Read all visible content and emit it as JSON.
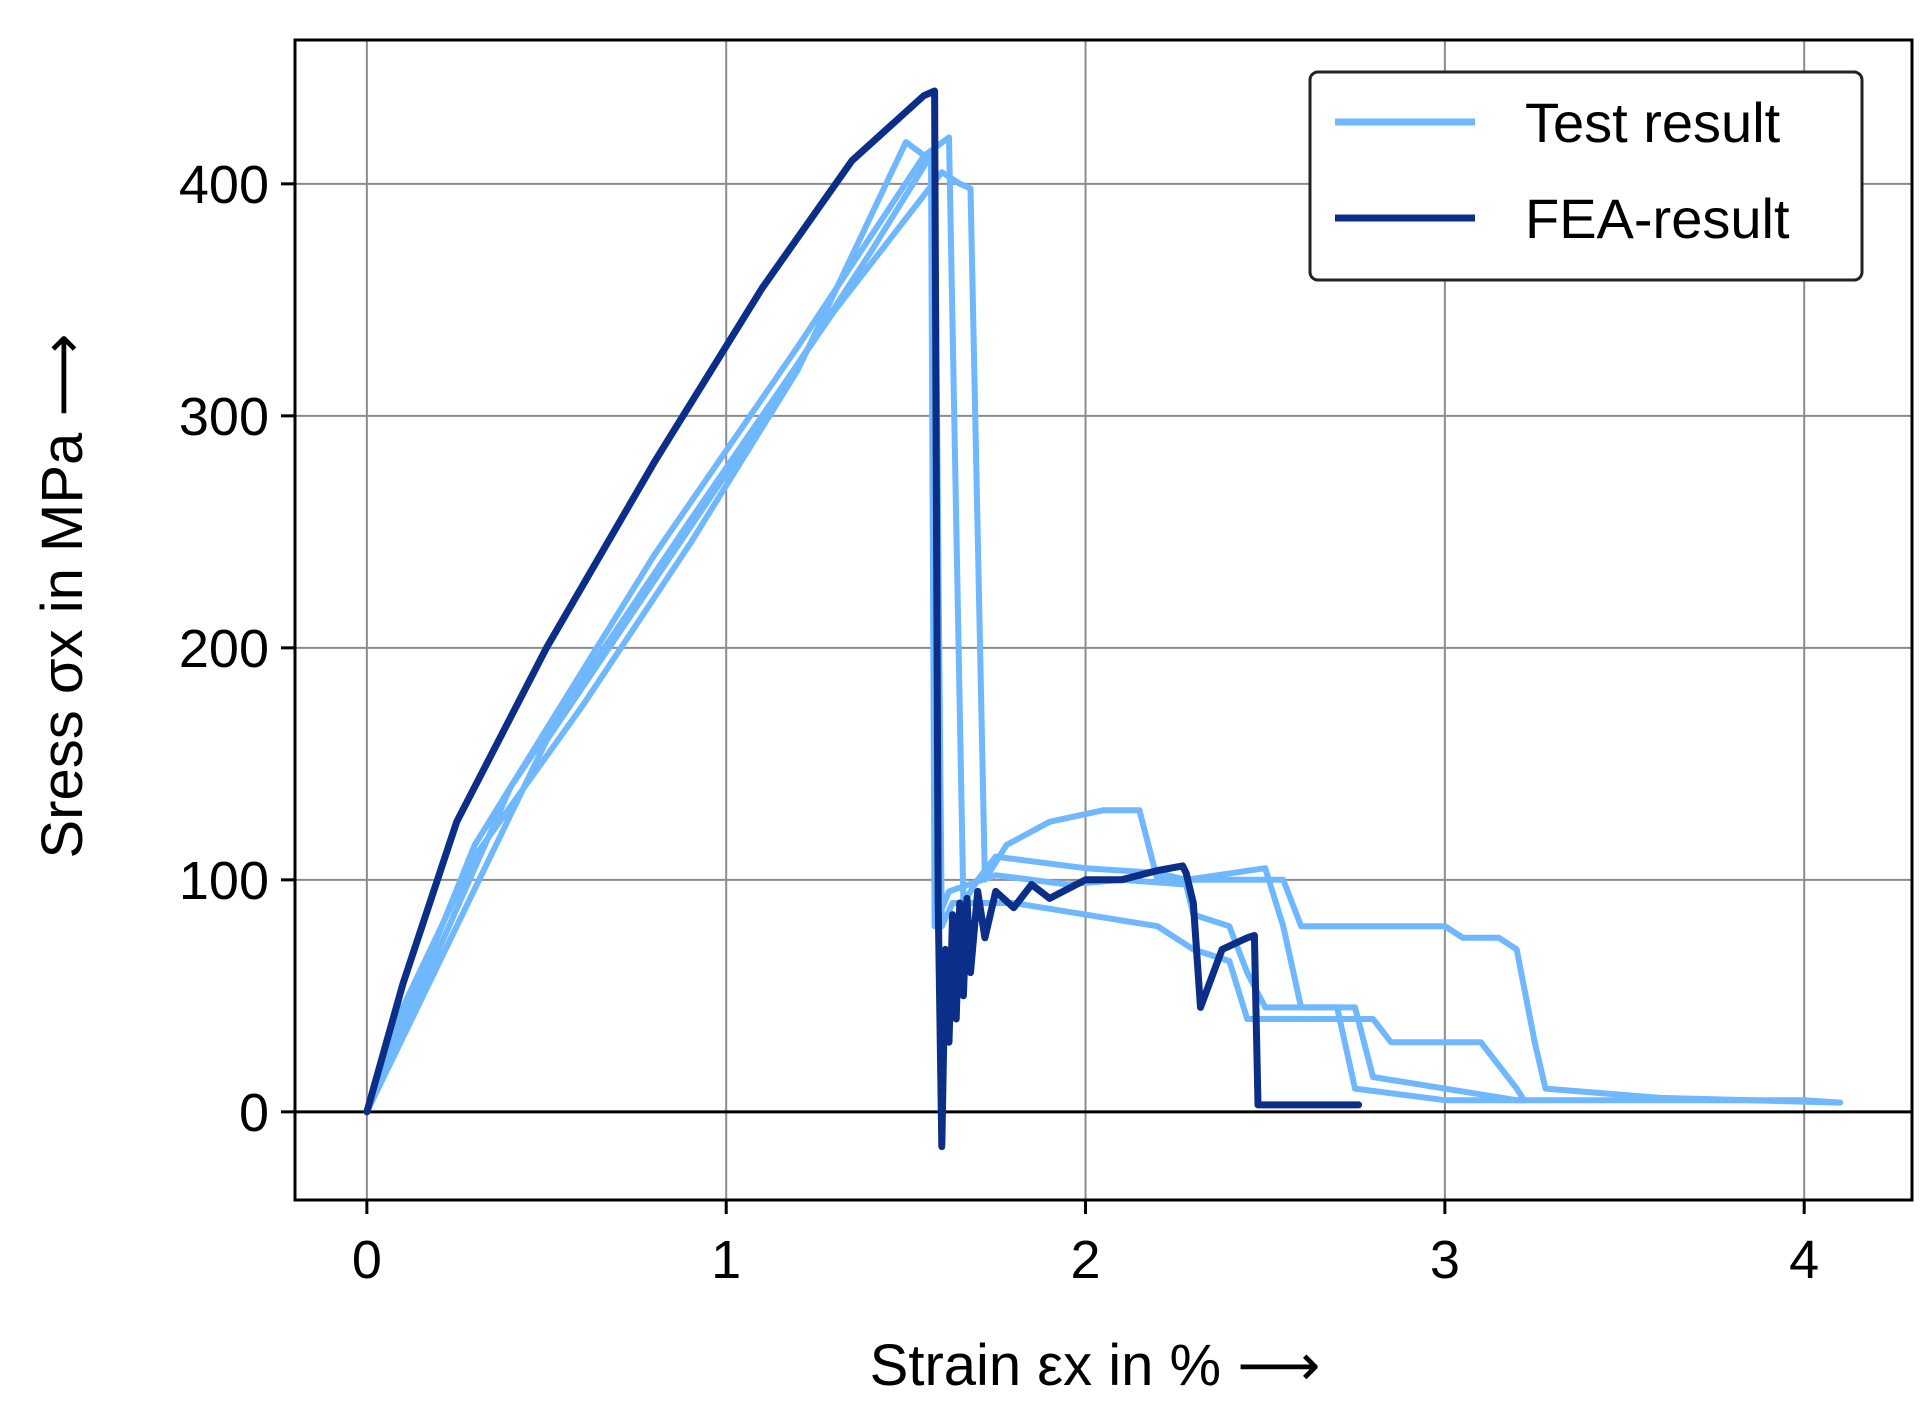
{
  "chart_data": {
    "type": "line",
    "title": "",
    "xlabel": "Strain εx in % ⟶",
    "ylabel": "Sress σx in MPa ⟶",
    "xlim": [
      -0.2,
      4.3
    ],
    "ylim": [
      -38,
      462
    ],
    "xticks": [
      0,
      1,
      2,
      3,
      4
    ],
    "yticks": [
      0,
      100,
      200,
      300,
      400
    ],
    "grid": true,
    "zero_line": true,
    "legend": {
      "position": "top-right",
      "entries": [
        "Test result",
        "FEA-result"
      ]
    },
    "colors": {
      "test": "#6fb7ff",
      "fea": "#0b2f88",
      "grid": "#8c8c8c"
    },
    "series": [
      {
        "name": "Test result",
        "color": "#6fb7ff",
        "x": [
          0,
          0.1,
          0.3,
          0.6,
          0.9,
          1.2,
          1.5,
          1.57,
          1.58,
          1.62,
          1.75,
          1.95,
          2.1,
          2.28,
          2.3,
          2.4,
          2.45,
          2.5,
          2.7,
          2.75,
          3.0,
          3.05,
          3.1,
          4.0,
          4.1
        ],
        "y": [
          0,
          45,
          110,
          175,
          245,
          320,
          418,
          410,
          80,
          95,
          102,
          98,
          100,
          98,
          85,
          80,
          60,
          45,
          45,
          10,
          5,
          5,
          5,
          5,
          4
        ]
      },
      {
        "name": "Test result",
        "color": "#6fb7ff",
        "x": [
          0,
          0.3,
          0.8,
          1.2,
          1.55,
          1.62,
          1.66,
          1.7,
          1.75,
          2.0,
          2.2,
          2.28,
          2.5,
          2.55,
          2.6,
          2.75,
          2.8,
          3.2,
          3.22
        ],
        "y": [
          0,
          115,
          240,
          330,
          412,
          420,
          90,
          100,
          110,
          105,
          103,
          100,
          105,
          80,
          45,
          45,
          15,
          5,
          5
        ]
      },
      {
        "name": "Test result",
        "color": "#6fb7ff",
        "x": [
          0,
          0.4,
          0.9,
          1.3,
          1.6,
          1.65,
          1.68,
          1.72,
          1.78,
          1.9,
          2.05,
          2.15,
          2.2,
          2.55,
          2.6,
          3.0,
          3.05,
          3.15,
          3.2,
          3.25,
          3.28,
          3.6,
          4.1
        ],
        "y": [
          0,
          140,
          255,
          345,
          405,
          400,
          398,
          100,
          115,
          125,
          130,
          130,
          100,
          100,
          80,
          80,
          75,
          75,
          70,
          30,
          10,
          6,
          4
        ]
      },
      {
        "name": "Test result",
        "color": "#6fb7ff",
        "x": [
          0,
          0.5,
          1.0,
          1.4,
          1.58,
          1.6,
          1.63,
          1.8,
          2.0,
          2.2,
          2.3,
          2.4,
          2.45,
          2.8,
          2.85,
          3.1,
          3.15,
          3.2,
          3.22
        ],
        "y": [
          0,
          160,
          275,
          370,
          415,
          80,
          90,
          90,
          85,
          80,
          70,
          65,
          40,
          40,
          30,
          30,
          20,
          10,
          5
        ]
      },
      {
        "name": "FEA-result",
        "color": "#0b2f88",
        "x": [
          0,
          0.1,
          0.25,
          0.5,
          0.8,
          1.1,
          1.35,
          1.55,
          1.58,
          1.59,
          1.6,
          1.61,
          1.62,
          1.63,
          1.64,
          1.65,
          1.66,
          1.67,
          1.68,
          1.7,
          1.72,
          1.75,
          1.8,
          1.85,
          1.9,
          2.0,
          2.1,
          2.2,
          2.27,
          2.28,
          2.3,
          2.32,
          2.38,
          2.45,
          2.47,
          2.48,
          2.6,
          2.76
        ],
        "y": [
          0,
          55,
          125,
          200,
          280,
          355,
          410,
          438,
          440,
          90,
          -15,
          70,
          30,
          85,
          40,
          90,
          50,
          92,
          60,
          95,
          75,
          95,
          88,
          98,
          92,
          100,
          100,
          104,
          106,
          103,
          90,
          45,
          70,
          75,
          76,
          3,
          3,
          3
        ]
      }
    ]
  }
}
